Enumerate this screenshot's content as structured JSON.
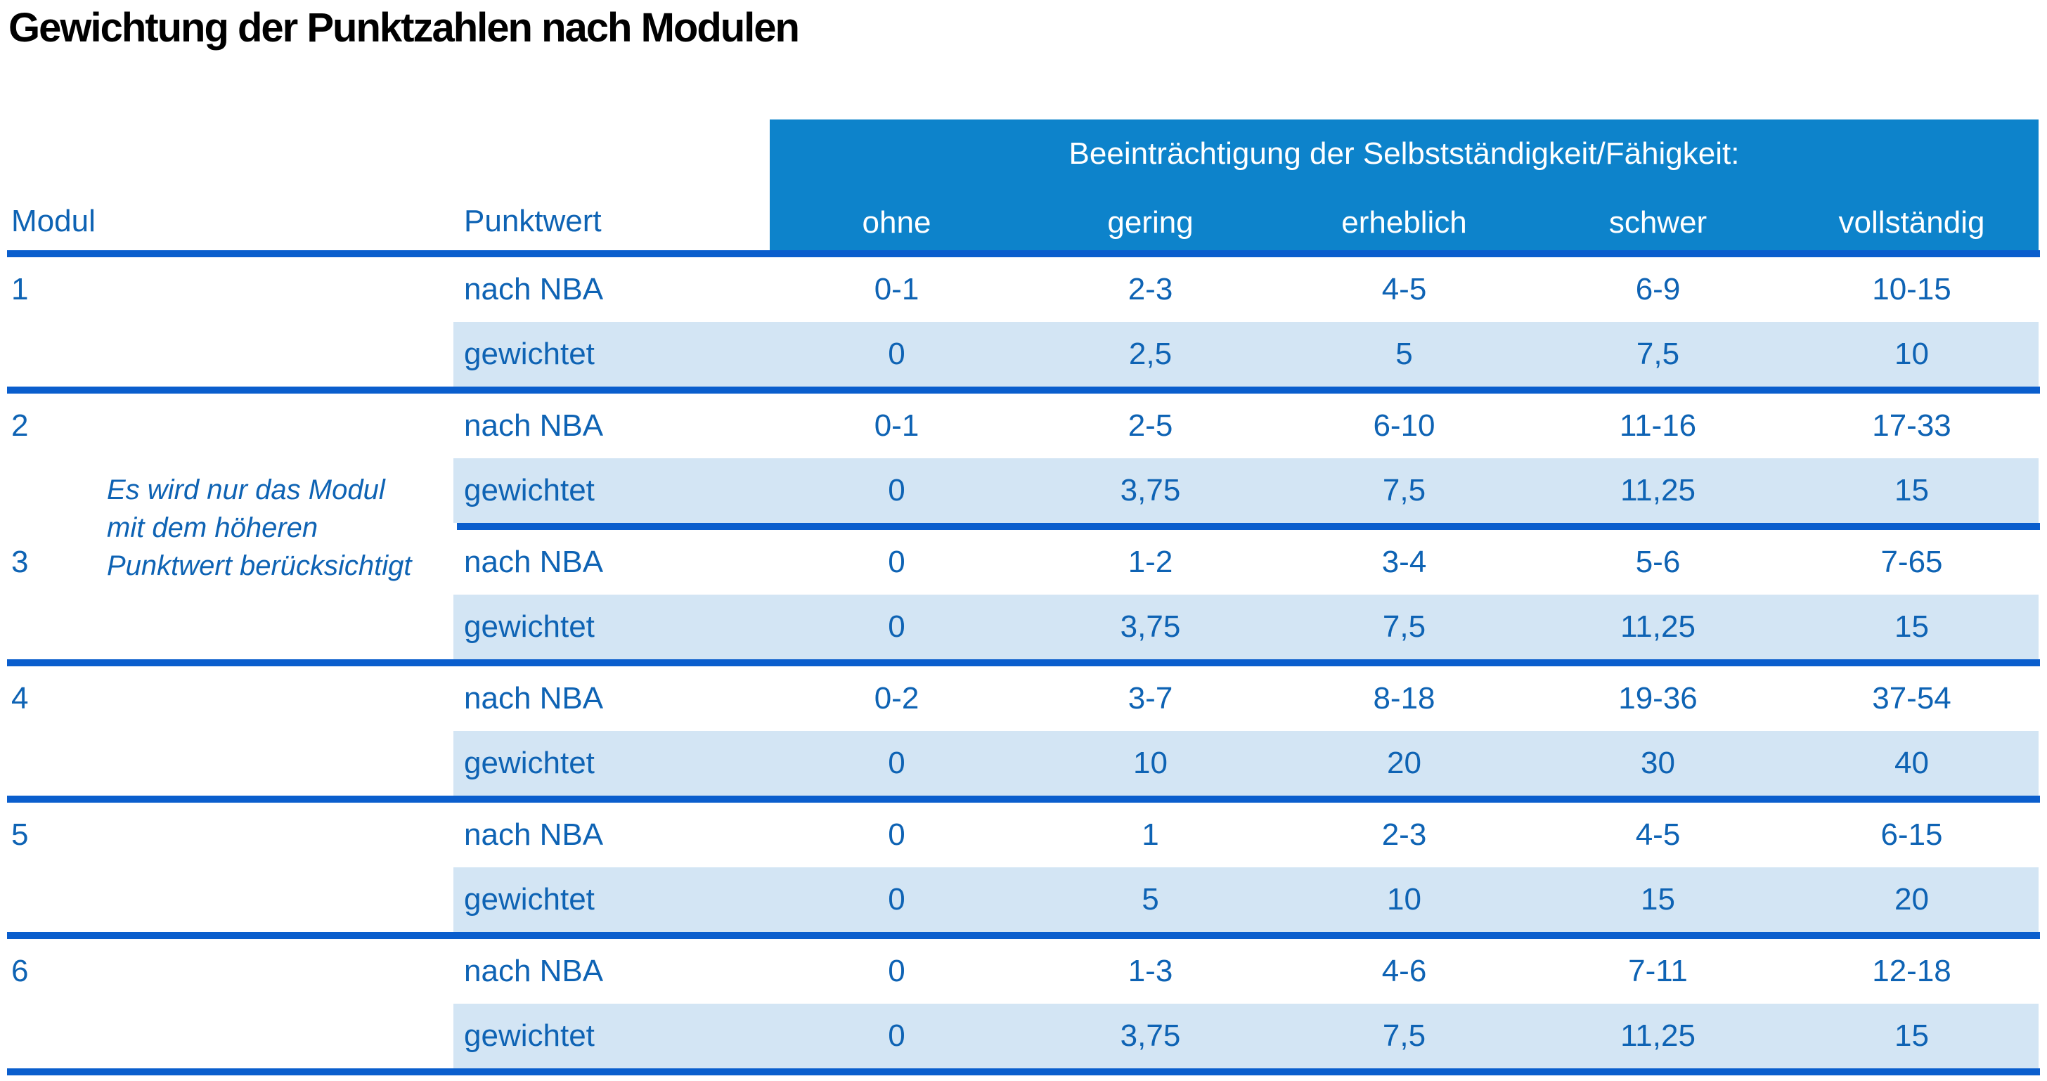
{
  "title": "Gewichtung der Punktzahlen nach Modulen",
  "colors": {
    "band_blue": "#0d83cb",
    "rule_blue": "#0a5ecd",
    "text_blue": "#0e63b4",
    "row_shade_blue": "#d3e5f4",
    "title_black": "#000000"
  },
  "header": {
    "modul": "Modul",
    "punktwert": "Punktwert",
    "group_title": "Beeinträchtigung der Selbstständigkeit/Fähigkeit:",
    "levels": [
      "ohne",
      "gering",
      "erheblich",
      "schwer",
      "vollständig"
    ]
  },
  "labels": {
    "nba": "nach NBA",
    "weighted": "gewichtet"
  },
  "note": {
    "line1": "Es wird nur das Modul",
    "line2": "mit dem höheren",
    "line3": "Punktwert berücksichtigt"
  },
  "modules": [
    {
      "id": "1",
      "nba": [
        "0-1",
        "2-3",
        "4-5",
        "6-9",
        "10-15"
      ],
      "weighted": [
        "0",
        "2,5",
        "5",
        "7,5",
        "10"
      ]
    },
    {
      "id": "2",
      "nba": [
        "0-1",
        "2-5",
        "6-10",
        "11-16",
        "17-33"
      ],
      "weighted": [
        "0",
        "3,75",
        "7,5",
        "11,25",
        "15"
      ]
    },
    {
      "id": "3",
      "nba": [
        "0",
        "1-2",
        "3-4",
        "5-6",
        "7-65"
      ],
      "weighted": [
        "0",
        "3,75",
        "7,5",
        "11,25",
        "15"
      ]
    },
    {
      "id": "4",
      "nba": [
        "0-2",
        "3-7",
        "8-18",
        "19-36",
        "37-54"
      ],
      "weighted": [
        "0",
        "10",
        "20",
        "30",
        "40"
      ]
    },
    {
      "id": "5",
      "nba": [
        "0",
        "1",
        "2-3",
        "4-5",
        "6-15"
      ],
      "weighted": [
        "0",
        "5",
        "10",
        "15",
        "20"
      ]
    },
    {
      "id": "6",
      "nba": [
        "0",
        "1-3",
        "4-6",
        "7-11",
        "12-18"
      ],
      "weighted": [
        "0",
        "3,75",
        "7,5",
        "11,25",
        "15"
      ]
    }
  ]
}
